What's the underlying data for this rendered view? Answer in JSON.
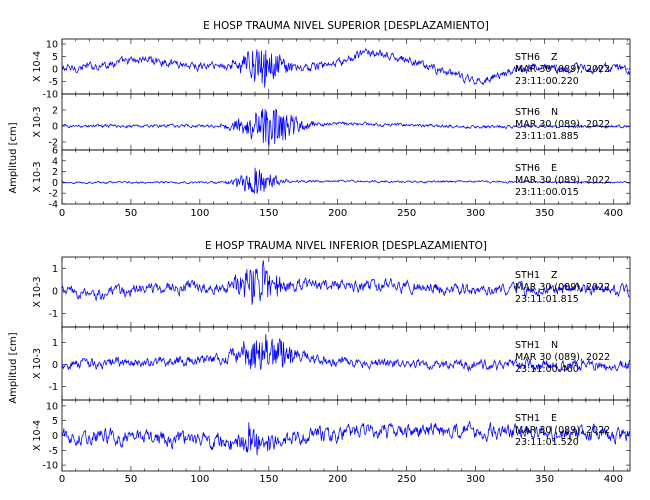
{
  "chart_data": [
    {
      "type": "line",
      "title": "E HOSP TRAUMA NIVEL SUPERIOR [DESPLAZAMIENTO]",
      "ylabel": "Amplitud [cm]",
      "xlabel": "",
      "xlim": [
        0,
        412
      ],
      "x_ticks": [
        0,
        50,
        100,
        150,
        200,
        250,
        300,
        350,
        400
      ],
      "grid": false,
      "series": [
        {
          "name": "STH6 Z",
          "station": "STH6",
          "component": "Z",
          "date": "MAR 30 (089), 2022",
          "time": "23:11:00.220",
          "scale": "X 10-4",
          "ylim": [
            -10,
            12
          ],
          "y_ticks": [
            10,
            5,
            0,
            -5,
            -10
          ],
          "noise_amp": 3,
          "event_amp": 7,
          "event_center": 145,
          "event_width": 16,
          "drift": [
            {
              "x": 0,
              "y": 0
            },
            {
              "x": 20,
              "y": 1
            },
            {
              "x": 60,
              "y": 4
            },
            {
              "x": 100,
              "y": 1
            },
            {
              "x": 140,
              "y": 2
            },
            {
              "x": 170,
              "y": 0
            },
            {
              "x": 200,
              "y": 2
            },
            {
              "x": 222,
              "y": 7
            },
            {
              "x": 260,
              "y": 2
            },
            {
              "x": 300,
              "y": -5
            },
            {
              "x": 340,
              "y": 1
            },
            {
              "x": 380,
              "y": 0
            },
            {
              "x": 412,
              "y": 0
            }
          ]
        },
        {
          "name": "STH6 N",
          "station": "STH6",
          "component": "N",
          "date": "MAR 30 (089), 2022",
          "time": "23:11:01.885",
          "scale": "X 10-3",
          "ylim": [
            -3,
            4
          ],
          "y_ticks": [
            2,
            0,
            -2
          ],
          "noise_amp": 0.35,
          "event_amp": 2.4,
          "event_center": 150,
          "event_width": 22,
          "drift": [
            {
              "x": 0,
              "y": 0
            },
            {
              "x": 150,
              "y": 0
            },
            {
              "x": 200,
              "y": 0.3
            },
            {
              "x": 300,
              "y": -0.1
            },
            {
              "x": 412,
              "y": 0
            }
          ]
        },
        {
          "name": "STH6 E",
          "station": "STH6",
          "component": "E",
          "date": "MAR 30 (089), 2022",
          "time": "23:11:00.015",
          "scale": "X 10-3",
          "ylim": [
            -4,
            6
          ],
          "y_ticks": [
            6,
            4,
            2,
            0,
            -2,
            -4
          ],
          "noise_amp": 0.35,
          "event_amp": 2.6,
          "event_center": 142,
          "event_width": 14,
          "drift": [
            {
              "x": 0,
              "y": 0
            },
            {
              "x": 100,
              "y": 0
            },
            {
              "x": 200,
              "y": 0.2
            },
            {
              "x": 412,
              "y": 0
            }
          ]
        }
      ]
    },
    {
      "type": "line",
      "title": "E HOSP TRAUMA NIVEL INFERIOR [DESPLAZAMIENTO]",
      "ylabel": "Amplitud [cm]",
      "xlabel": "",
      "xlim": [
        0,
        412
      ],
      "x_ticks": [
        0,
        50,
        100,
        150,
        200,
        250,
        300,
        350,
        400
      ],
      "grid": false,
      "series": [
        {
          "name": "STH1 Z",
          "station": "STH1",
          "component": "Z",
          "date": "MAR 30 (089), 2022",
          "time": "23:11:01.815",
          "scale": "X 10-3",
          "ylim": [
            -1.6,
            1.5
          ],
          "y_ticks": [
            1,
            0,
            -1
          ],
          "noise_amp": 0.45,
          "event_amp": 0.9,
          "event_center": 143,
          "event_width": 16,
          "drift": [
            {
              "x": 0,
              "y": 0
            },
            {
              "x": 20,
              "y": -0.2
            },
            {
              "x": 60,
              "y": 0.1
            },
            {
              "x": 150,
              "y": 0.3
            },
            {
              "x": 250,
              "y": 0.2
            },
            {
              "x": 300,
              "y": 0
            },
            {
              "x": 380,
              "y": 0.1
            },
            {
              "x": 412,
              "y": 0
            }
          ]
        },
        {
          "name": "STH1 N",
          "station": "STH1",
          "component": "N",
          "date": "MAR 30 (089), 2022",
          "time": "23:11:00.460",
          "scale": "X 10-3",
          "ylim": [
            -1.6,
            1.7
          ],
          "y_ticks": [
            1,
            0,
            -1
          ],
          "noise_amp": 0.4,
          "event_amp": 0.9,
          "event_center": 148,
          "event_width": 18,
          "drift": [
            {
              "x": 0,
              "y": 0
            },
            {
              "x": 100,
              "y": 0.2
            },
            {
              "x": 150,
              "y": 0.6
            },
            {
              "x": 200,
              "y": 0.1
            },
            {
              "x": 300,
              "y": 0
            },
            {
              "x": 412,
              "y": 0
            }
          ]
        },
        {
          "name": "STH1 E",
          "station": "STH1",
          "component": "E",
          "date": "MAR 30 (089), 2022",
          "time": "23:11:01.520",
          "scale": "X 10-4",
          "ylim": [
            -12,
            12
          ],
          "y_ticks": [
            10,
            5,
            0,
            -5,
            -10
          ],
          "noise_amp": 4.5,
          "event_amp": 4,
          "event_center": 138,
          "event_width": 16,
          "drift": [
            {
              "x": 0,
              "y": 0
            },
            {
              "x": 130,
              "y": -2
            },
            {
              "x": 250,
              "y": 2
            },
            {
              "x": 412,
              "y": 0
            }
          ]
        }
      ]
    }
  ],
  "colors": {
    "trace": "#0000ff",
    "axes": "#000000",
    "background": "#ffffff"
  }
}
